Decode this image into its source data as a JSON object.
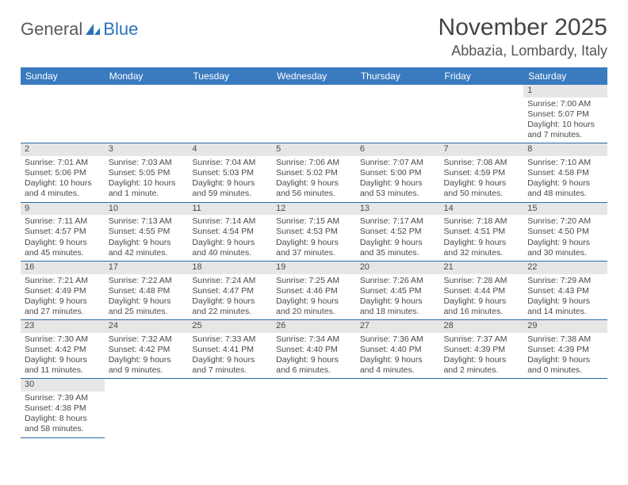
{
  "logo": {
    "general": "General",
    "blue": "Blue"
  },
  "title": "November 2025",
  "location": "Abbazia, Lombardy, Italy",
  "colors": {
    "header_bg": "#3a7bbf",
    "row_divider": "#2c6aa8",
    "daynum_bg": "#e6e6e6"
  },
  "day_headers": [
    "Sunday",
    "Monday",
    "Tuesday",
    "Wednesday",
    "Thursday",
    "Friday",
    "Saturday"
  ],
  "weeks": [
    [
      null,
      null,
      null,
      null,
      null,
      null,
      {
        "n": "1",
        "sr": "Sunrise: 7:00 AM",
        "ss": "Sunset: 5:07 PM",
        "dl": "Daylight: 10 hours and 7 minutes."
      }
    ],
    [
      {
        "n": "2",
        "sr": "Sunrise: 7:01 AM",
        "ss": "Sunset: 5:06 PM",
        "dl": "Daylight: 10 hours and 4 minutes."
      },
      {
        "n": "3",
        "sr": "Sunrise: 7:03 AM",
        "ss": "Sunset: 5:05 PM",
        "dl": "Daylight: 10 hours and 1 minute."
      },
      {
        "n": "4",
        "sr": "Sunrise: 7:04 AM",
        "ss": "Sunset: 5:03 PM",
        "dl": "Daylight: 9 hours and 59 minutes."
      },
      {
        "n": "5",
        "sr": "Sunrise: 7:06 AM",
        "ss": "Sunset: 5:02 PM",
        "dl": "Daylight: 9 hours and 56 minutes."
      },
      {
        "n": "6",
        "sr": "Sunrise: 7:07 AM",
        "ss": "Sunset: 5:00 PM",
        "dl": "Daylight: 9 hours and 53 minutes."
      },
      {
        "n": "7",
        "sr": "Sunrise: 7:08 AM",
        "ss": "Sunset: 4:59 PM",
        "dl": "Daylight: 9 hours and 50 minutes."
      },
      {
        "n": "8",
        "sr": "Sunrise: 7:10 AM",
        "ss": "Sunset: 4:58 PM",
        "dl": "Daylight: 9 hours and 48 minutes."
      }
    ],
    [
      {
        "n": "9",
        "sr": "Sunrise: 7:11 AM",
        "ss": "Sunset: 4:57 PM",
        "dl": "Daylight: 9 hours and 45 minutes."
      },
      {
        "n": "10",
        "sr": "Sunrise: 7:13 AM",
        "ss": "Sunset: 4:55 PM",
        "dl": "Daylight: 9 hours and 42 minutes."
      },
      {
        "n": "11",
        "sr": "Sunrise: 7:14 AM",
        "ss": "Sunset: 4:54 PM",
        "dl": "Daylight: 9 hours and 40 minutes."
      },
      {
        "n": "12",
        "sr": "Sunrise: 7:15 AM",
        "ss": "Sunset: 4:53 PM",
        "dl": "Daylight: 9 hours and 37 minutes."
      },
      {
        "n": "13",
        "sr": "Sunrise: 7:17 AM",
        "ss": "Sunset: 4:52 PM",
        "dl": "Daylight: 9 hours and 35 minutes."
      },
      {
        "n": "14",
        "sr": "Sunrise: 7:18 AM",
        "ss": "Sunset: 4:51 PM",
        "dl": "Daylight: 9 hours and 32 minutes."
      },
      {
        "n": "15",
        "sr": "Sunrise: 7:20 AM",
        "ss": "Sunset: 4:50 PM",
        "dl": "Daylight: 9 hours and 30 minutes."
      }
    ],
    [
      {
        "n": "16",
        "sr": "Sunrise: 7:21 AM",
        "ss": "Sunset: 4:49 PM",
        "dl": "Daylight: 9 hours and 27 minutes."
      },
      {
        "n": "17",
        "sr": "Sunrise: 7:22 AM",
        "ss": "Sunset: 4:48 PM",
        "dl": "Daylight: 9 hours and 25 minutes."
      },
      {
        "n": "18",
        "sr": "Sunrise: 7:24 AM",
        "ss": "Sunset: 4:47 PM",
        "dl": "Daylight: 9 hours and 22 minutes."
      },
      {
        "n": "19",
        "sr": "Sunrise: 7:25 AM",
        "ss": "Sunset: 4:46 PM",
        "dl": "Daylight: 9 hours and 20 minutes."
      },
      {
        "n": "20",
        "sr": "Sunrise: 7:26 AM",
        "ss": "Sunset: 4:45 PM",
        "dl": "Daylight: 9 hours and 18 minutes."
      },
      {
        "n": "21",
        "sr": "Sunrise: 7:28 AM",
        "ss": "Sunset: 4:44 PM",
        "dl": "Daylight: 9 hours and 16 minutes."
      },
      {
        "n": "22",
        "sr": "Sunrise: 7:29 AM",
        "ss": "Sunset: 4:43 PM",
        "dl": "Daylight: 9 hours and 14 minutes."
      }
    ],
    [
      {
        "n": "23",
        "sr": "Sunrise: 7:30 AM",
        "ss": "Sunset: 4:42 PM",
        "dl": "Daylight: 9 hours and 11 minutes."
      },
      {
        "n": "24",
        "sr": "Sunrise: 7:32 AM",
        "ss": "Sunset: 4:42 PM",
        "dl": "Daylight: 9 hours and 9 minutes."
      },
      {
        "n": "25",
        "sr": "Sunrise: 7:33 AM",
        "ss": "Sunset: 4:41 PM",
        "dl": "Daylight: 9 hours and 7 minutes."
      },
      {
        "n": "26",
        "sr": "Sunrise: 7:34 AM",
        "ss": "Sunset: 4:40 PM",
        "dl": "Daylight: 9 hours and 6 minutes."
      },
      {
        "n": "27",
        "sr": "Sunrise: 7:36 AM",
        "ss": "Sunset: 4:40 PM",
        "dl": "Daylight: 9 hours and 4 minutes."
      },
      {
        "n": "28",
        "sr": "Sunrise: 7:37 AM",
        "ss": "Sunset: 4:39 PM",
        "dl": "Daylight: 9 hours and 2 minutes."
      },
      {
        "n": "29",
        "sr": "Sunrise: 7:38 AM",
        "ss": "Sunset: 4:39 PM",
        "dl": "Daylight: 9 hours and 0 minutes."
      }
    ],
    [
      {
        "n": "30",
        "sr": "Sunrise: 7:39 AM",
        "ss": "Sunset: 4:38 PM",
        "dl": "Daylight: 8 hours and 58 minutes."
      },
      null,
      null,
      null,
      null,
      null,
      null
    ]
  ]
}
